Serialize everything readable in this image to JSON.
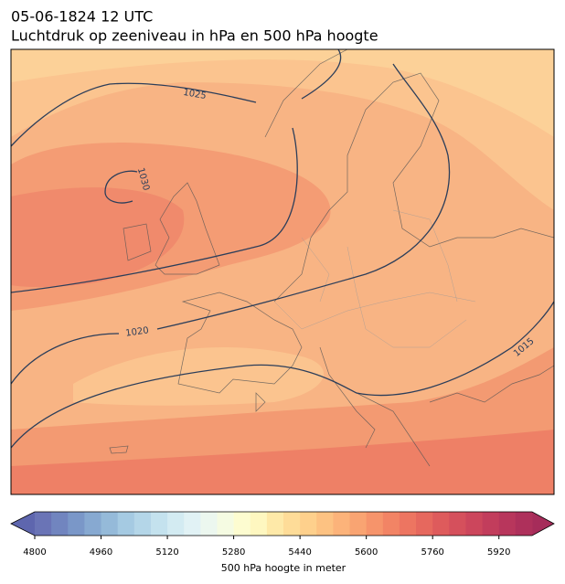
{
  "header": {
    "date": "05-06-1824 12 UTC",
    "title": "Luchtdruk op zeeniveau in hPa en 500 hPa hoogte"
  },
  "map": {
    "contour_labels": [
      1025,
      1030,
      1020,
      1015
    ]
  },
  "chart_data": {
    "type": "colorbar",
    "label": "500 hPa hoogte in meter",
    "xlim": [
      4800,
      6000
    ],
    "xticks": [
      4800,
      4960,
      5120,
      5280,
      5440,
      5600,
      5760,
      5920
    ],
    "under_color": "#5e66ae",
    "over_color": "#a62c5a",
    "colors": [
      "#6a74b6",
      "#7185bf",
      "#7a97c8",
      "#87a9d1",
      "#95bad9",
      "#a5cae2",
      "#b4d6e8",
      "#c4e2ee",
      "#d3ebf2",
      "#e1f2f5",
      "#ecf7ef",
      "#f5fbe2",
      "#fdfcd0",
      "#fef7c0",
      "#fee9a8",
      "#fedc98",
      "#fed08c",
      "#fdc282",
      "#fcb37a",
      "#f9a472",
      "#f6946b",
      "#f28465",
      "#ed7561",
      "#e6685e",
      "#de5b5c",
      "#d5505c",
      "#cc465c",
      "#c23d5c",
      "#b8365c",
      "#ae305b"
    ]
  }
}
